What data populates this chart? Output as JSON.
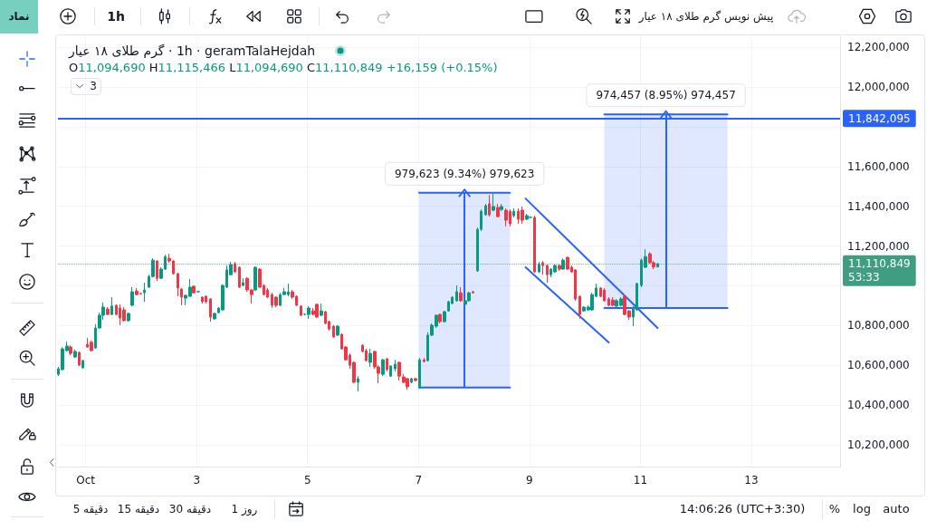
{
  "chart_data": {
    "type": "candlestick",
    "title": "گرم طلای ۱۸ عیار · 1h · geramTalaHejdah",
    "subtitle": "O11,094,690 H11,115,466 L11,094,690 C11,110,849 +16,159 (+0.15%)",
    "x": [
      0.51,
      0.58,
      0.66,
      0.73,
      0.81,
      0.88,
      0.95,
      1.03,
      1.1,
      1.18,
      1.25,
      1.32,
      1.4,
      1.47,
      1.55,
      1.62,
      1.69,
      1.77,
      1.84,
      1.92,
      1.99,
      2.06,
      2.14,
      2.21,
      2.29,
      2.36,
      2.43,
      2.51,
      2.58,
      2.66,
      2.73,
      2.8,
      2.88,
      2.95,
      3.03,
      3.1,
      3.17,
      3.25,
      3.32,
      3.4,
      3.47,
      3.54,
      3.62,
      3.69,
      3.77,
      3.84,
      3.91,
      3.99,
      4.06,
      4.14,
      4.21,
      4.28,
      4.36,
      4.43,
      4.51,
      4.58,
      4.65,
      4.73,
      4.8,
      4.88,
      4.95,
      5.02,
      5.1,
      5.17,
      5.25,
      5.32,
      5.39,
      5.47,
      5.54,
      5.62,
      5.69,
      5.76,
      5.84,
      5.91,
      5.99,
      6.06,
      6.13,
      6.21,
      6.28,
      6.36,
      6.43,
      6.5,
      6.58,
      6.65,
      6.73,
      6.8,
      6.87,
      6.95,
      7.02,
      7.1,
      7.17,
      7.24,
      7.32,
      7.39,
      7.47,
      7.54,
      7.61,
      7.69,
      7.76,
      7.84,
      7.91,
      7.98,
      8.06,
      8.13,
      8.21,
      8.28,
      8.35,
      8.43,
      8.5,
      8.58,
      8.65,
      8.72,
      8.8,
      8.87,
      8.95,
      9.02,
      9.09,
      9.17,
      9.24,
      9.32,
      9.39,
      9.46,
      9.54,
      9.61,
      9.69,
      9.76,
      9.83,
      9.91,
      9.98,
      10.06,
      10.13,
      10.2,
      10.28,
      10.35,
      10.43,
      10.5,
      10.57,
      10.65,
      10.72,
      10.8,
      10.87,
      10.94,
      11.02,
      11.09,
      11.17,
      11.24,
      11.31
    ],
    "ohlc": [
      [
        10555000,
        10592000,
        10546000,
        10583000
      ],
      [
        10579000,
        10692000,
        10574000,
        10683000
      ],
      [
        10674000,
        10720000,
        10670000,
        10697000
      ],
      [
        10692000,
        10701000,
        10651000,
        10660000
      ],
      [
        10642000,
        10679000,
        10637000,
        10670000
      ],
      [
        10665000,
        10670000,
        10597000,
        10601000
      ],
      [
        10588000,
        10628000,
        10583000,
        10624000
      ],
      [
        10706000,
        10738000,
        10688000,
        10692000
      ],
      [
        10716000,
        10725000,
        10670000,
        10674000
      ],
      [
        10688000,
        10807000,
        10683000,
        10788000
      ],
      [
        10788000,
        10865000,
        10783000,
        10852000
      ],
      [
        10852000,
        10916000,
        10829000,
        10893000
      ],
      [
        10883000,
        10893000,
        10852000,
        10856000
      ],
      [
        10856000,
        10943000,
        10852000,
        10898000
      ],
      [
        10902000,
        10907000,
        10852000,
        10856000
      ],
      [
        10888000,
        10907000,
        10802000,
        10838000
      ],
      [
        10879000,
        10893000,
        10820000,
        10825000
      ],
      [
        10825000,
        10865000,
        10820000,
        10861000
      ],
      [
        10902000,
        10993000,
        10898000,
        10970000
      ],
      [
        10974000,
        10989000,
        10952000,
        10956000
      ],
      [
        10961000,
        10965000,
        10956000,
        10960000
      ],
      [
        10965000,
        11016000,
        10920000,
        10979000
      ],
      [
        10993000,
        11056000,
        10989000,
        11047000
      ],
      [
        11047000,
        11138000,
        11043000,
        11129000
      ],
      [
        11125000,
        11129000,
        11025000,
        11038000
      ],
      [
        11038000,
        11093000,
        11034000,
        11084000
      ],
      [
        11084000,
        11156000,
        11080000,
        11147000
      ],
      [
        11138000,
        11161000,
        11116000,
        11125000
      ],
      [
        11125000,
        11129000,
        11056000,
        11061000
      ],
      [
        11061000,
        11065000,
        10947000,
        10989000
      ],
      [
        10984000,
        10989000,
        10902000,
        10943000
      ],
      [
        10938000,
        10956000,
        10902000,
        10952000
      ],
      [
        10947000,
        11034000,
        10945000,
        10993000
      ],
      [
        10998000,
        11002000,
        10961000,
        10965000
      ],
      [
        10970000,
        10974000,
        10965000,
        10971000
      ],
      [
        10943000,
        10947000,
        10911000,
        10920000
      ],
      [
        10947000,
        10952000,
        10911000,
        10920000
      ],
      [
        10934000,
        10938000,
        10820000,
        10843000
      ],
      [
        10834000,
        10865000,
        10829000,
        10861000
      ],
      [
        10865000,
        10893000,
        10861000,
        10888000
      ],
      [
        10879000,
        11007000,
        10874000,
        11002000
      ],
      [
        10993000,
        11102000,
        10989000,
        11080000
      ],
      [
        11056000,
        11120000,
        11052000,
        11107000
      ],
      [
        11111000,
        11120000,
        11065000,
        11070000
      ],
      [
        11093000,
        11098000,
        10989000,
        10993000
      ],
      [
        11002000,
        11038000,
        10998000,
        11016000
      ],
      [
        11038000,
        11043000,
        10970000,
        10979000
      ],
      [
        10979000,
        10984000,
        10911000,
        10956000
      ],
      [
        10979000,
        11098000,
        10974000,
        11093000
      ],
      [
        11084000,
        11089000,
        10989000,
        10993000
      ],
      [
        11002000,
        11007000,
        10952000,
        10956000
      ],
      [
        10979000,
        10989000,
        10938000,
        10943000
      ],
      [
        10956000,
        10965000,
        10888000,
        10902000
      ],
      [
        10943000,
        10947000,
        10893000,
        10902000
      ],
      [
        10902000,
        10965000,
        10898000,
        10956000
      ],
      [
        10956000,
        10989000,
        10952000,
        10970000
      ],
      [
        10956000,
        11011000,
        10947000,
        10970000
      ],
      [
        10970000,
        10979000,
        10934000,
        10943000
      ],
      [
        10947000,
        10952000,
        10898000,
        10902000
      ],
      [
        10898000,
        10902000,
        10847000,
        10852000
      ],
      [
        10856000,
        10861000,
        10852000,
        10857000
      ],
      [
        10856000,
        10898000,
        10834000,
        10888000
      ],
      [
        10874000,
        10888000,
        10852000,
        10856000
      ],
      [
        10907000,
        10911000,
        10838000,
        10843000
      ],
      [
        10852000,
        10911000,
        10847000,
        10874000
      ],
      [
        10870000,
        10874000,
        10807000,
        10811000
      ],
      [
        10820000,
        10825000,
        10774000,
        10783000
      ],
      [
        10797000,
        10802000,
        10738000,
        10743000
      ],
      [
        10752000,
        10802000,
        10747000,
        10797000
      ],
      [
        10756000,
        10761000,
        10679000,
        10683000
      ],
      [
        10692000,
        10697000,
        10624000,
        10628000
      ],
      [
        10651000,
        10660000,
        10583000,
        10601000
      ],
      [
        10615000,
        10619000,
        10510000,
        10515000
      ],
      [
        10515000,
        10546000,
        10469000,
        10533000
      ],
      [
        10701000,
        10706000,
        10665000,
        10670000
      ],
      [
        10674000,
        10683000,
        10619000,
        10624000
      ],
      [
        10615000,
        10683000,
        10592000,
        10660000
      ],
      [
        10670000,
        10674000,
        10583000,
        10592000
      ],
      [
        10592000,
        10601000,
        10510000,
        10560000
      ],
      [
        10555000,
        10633000,
        10546000,
        10628000
      ],
      [
        10633000,
        10637000,
        10569000,
        10579000
      ],
      [
        10546000,
        10601000,
        10542000,
        10597000
      ],
      [
        10583000,
        10628000,
        10569000,
        10606000
      ],
      [
        10615000,
        10619000,
        10524000,
        10546000
      ],
      [
        10542000,
        10555000,
        10510000,
        10515000
      ],
      [
        10533000,
        10537000,
        10478000,
        10492000
      ],
      [
        10515000,
        10537000,
        10510000,
        10533000
      ],
      [
        10533000,
        10537000,
        10519000,
        10524000
      ],
      [
        10488000,
        10637000,
        10483000,
        10628000
      ],
      [
        10628000,
        10637000,
        10615000,
        10619000
      ],
      [
        10624000,
        10766000,
        10619000,
        10752000
      ],
      [
        10752000,
        10811000,
        10747000,
        10802000
      ],
      [
        10797000,
        10856000,
        10788000,
        10852000
      ],
      [
        10856000,
        10861000,
        10811000,
        10820000
      ],
      [
        10820000,
        10874000,
        10815000,
        10870000
      ],
      [
        10874000,
        10925000,
        10870000,
        10920000
      ],
      [
        10911000,
        10947000,
        10907000,
        10943000
      ],
      [
        10925000,
        11002000,
        10920000,
        10970000
      ],
      [
        10965000,
        10993000,
        10920000,
        10925000
      ],
      [
        10907000,
        10934000,
        10902000,
        10925000
      ],
      [
        10925000,
        10970000,
        10920000,
        10965000
      ],
      [
        10970000,
        10974000,
        10961000,
        10965000
      ],
      [
        11075000,
        11293000,
        11070000,
        11284000
      ],
      [
        11284000,
        11384000,
        11275000,
        11375000
      ],
      [
        11357000,
        11412000,
        11353000,
        11403000
      ],
      [
        11412000,
        11457000,
        11348000,
        11357000
      ],
      [
        11380000,
        11462000,
        11375000,
        11399000
      ],
      [
        11394000,
        11412000,
        11344000,
        11348000
      ],
      [
        11384000,
        11412000,
        11375000,
        11399000
      ],
      [
        11380000,
        11389000,
        11298000,
        11330000
      ],
      [
        11375000,
        11384000,
        11298000,
        11312000
      ],
      [
        11353000,
        11389000,
        11344000,
        11375000
      ],
      [
        11375000,
        11389000,
        11312000,
        11335000
      ],
      [
        11380000,
        11399000,
        11312000,
        11330000
      ],
      [
        11335000,
        11362000,
        11330000,
        11353000
      ],
      [
        11344000,
        11348000,
        11339000,
        11345000
      ],
      [
        11344000,
        11353000,
        11065000,
        11070000
      ],
      [
        11070000,
        11120000,
        11065000,
        11107000
      ],
      [
        11116000,
        11125000,
        11056000,
        11102000
      ],
      [
        11102000,
        11107000,
        11016000,
        11056000
      ],
      [
        11056000,
        11089000,
        11043000,
        11084000
      ],
      [
        11070000,
        11107000,
        11065000,
        11102000
      ],
      [
        11102000,
        11107000,
        11075000,
        11084000
      ],
      [
        11084000,
        11138000,
        11080000,
        11129000
      ],
      [
        11143000,
        11147000,
        11080000,
        11084000
      ],
      [
        11093000,
        11102000,
        11065000,
        11070000
      ],
      [
        11080000,
        11084000,
        10925000,
        10934000
      ],
      [
        10947000,
        10952000,
        10834000,
        10856000
      ],
      [
        10874000,
        10898000,
        10870000,
        10893000
      ],
      [
        10879000,
        10902000,
        10874000,
        10893000
      ],
      [
        10879000,
        10965000,
        10874000,
        10956000
      ],
      [
        10947000,
        11011000,
        10943000,
        10989000
      ],
      [
        10989000,
        10993000,
        10943000,
        10947000
      ],
      [
        10979000,
        10989000,
        10920000,
        10925000
      ],
      [
        10934000,
        10943000,
        10898000,
        10902000
      ],
      [
        10929000,
        10943000,
        10898000,
        10902000
      ],
      [
        10898000,
        10934000,
        10893000,
        10925000
      ],
      [
        10902000,
        10943000,
        10898000,
        10934000
      ],
      [
        10947000,
        10956000,
        10852000,
        10856000
      ],
      [
        10874000,
        10879000,
        10829000,
        10843000
      ],
      [
        10843000,
        10898000,
        10797000,
        10888000
      ],
      [
        10879000,
        11016000,
        10874000,
        11011000
      ],
      [
        11002000,
        11138000,
        10993000,
        11129000
      ],
      [
        11093000,
        11184000,
        11089000,
        11147000
      ],
      [
        11161000,
        11170000,
        11111000,
        11116000
      ],
      [
        11116000,
        11125000,
        11084000,
        11094690
      ],
      [
        11094690,
        11115466,
        11094690,
        11110849
      ]
    ],
    "series": [
      {
        "type": "line",
        "x": [
          7.01,
          8.65
        ],
        "values": [
          11468000,
          11468000
        ],
        "color": "#2962ff"
      },
      {
        "type": "line",
        "x": [
          7.01,
          8.65
        ],
        "values": [
          10488000,
          10488000
        ],
        "lower": [
          10488000,
          10488000
        ],
        "upper": [
          11468000,
          11468000
        ],
        "color": "#2962ff"
      },
      {
        "type": "line",
        "x": [
          7.83,
          7.83
        ],
        "values": [
          10488000,
          11468000
        ],
        "color": "#2962ff"
      },
      {
        "type": "line",
        "x": [
          10.35,
          12.57
        ],
        "values": [
          11862000,
          11862000
        ],
        "color": "#2962ff"
      },
      {
        "type": "line",
        "x": [
          10.35,
          12.57
        ],
        "values": [
          10888000,
          10888000
        ],
        "lower": [
          10888000,
          10888000
        ],
        "upper": [
          11862000,
          11862000
        ],
        "color": "#2962ff"
      },
      {
        "type": "line",
        "x": [
          11.46,
          11.46
        ],
        "values": [
          10888000,
          11862000
        ],
        "color": "#2962ff"
      },
      {
        "type": "line",
        "x": [
          8.93,
          11.31
        ],
        "values": [
          11439000,
          10788000
        ],
        "color": "#2962ff"
      },
      {
        "type": "line",
        "x": [
          8.93,
          10.43
        ],
        "values": [
          11093000,
          10715000
        ],
        "color": "#2962ff"
      }
    ],
    "ref_lines": [
      {
        "axis": "y",
        "value": 11842095,
        "label": "11,842,095",
        "color": "#2962ff"
      },
      {
        "axis": "y",
        "value": 11110849,
        "label": "11,110,849\n53:33",
        "color": "#3f9d80",
        "line_style": "dotted"
      }
    ],
    "annotations": [
      {
        "text": "979,623 (9.34%) 979,623",
        "x": 7.83,
        "y": 11468000
      },
      {
        "text": "974,457 (8.95%) 974,457",
        "x": 11.46,
        "y": 11862000
      },
      "نماد",
      "1h",
      "پیش نویس گرم طلای ۱۸ عیار",
      "3",
      "5 دقیقه",
      "15 دقیقه",
      "30 دقیقه",
      "1 روز",
      "14:06:26 (UTC+3:30)",
      "%",
      "log",
      "auto"
    ],
    "xlim": [
      0.5,
      14.6
    ],
    "xticks": [
      {
        "value": 1,
        "label": "Oct"
      },
      3,
      5,
      7,
      9,
      11,
      13
    ],
    "ylim": [
      10091000,
      12255000
    ],
    "yticks": [
      {
        "value": 10200000,
        "label": "10,200,000"
      },
      {
        "value": 10400000,
        "label": "10,400,000"
      },
      {
        "value": 10600000,
        "label": "10,600,000"
      },
      {
        "value": 10800000,
        "label": "10,800,000"
      },
      {
        "value": 11000000,
        "label": null
      },
      {
        "value": 11200000,
        "label": "11,200,000"
      },
      {
        "value": 11400000,
        "label": "11,400,000"
      },
      {
        "value": 11600000,
        "label": "11,600,000"
      },
      {
        "value": 11800000,
        "label": null
      },
      {
        "value": 12000000,
        "label": "12,000,000"
      },
      {
        "value": 12200000,
        "label": "12,200,000"
      }
    ],
    "grid": true
  }
}
